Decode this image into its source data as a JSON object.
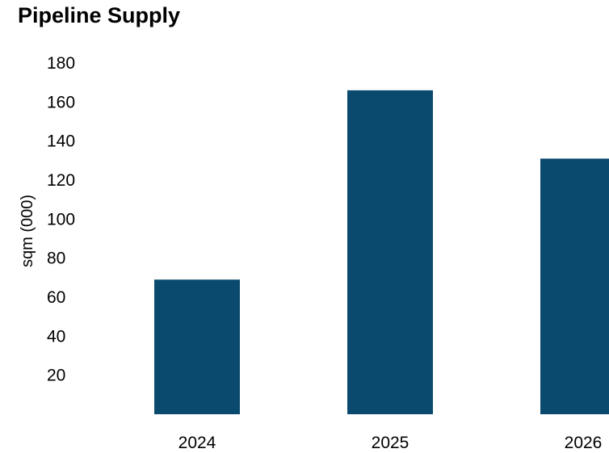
{
  "chart_data": {
    "type": "bar",
    "title": "Pipeline Supply",
    "xlabel": "",
    "ylabel": "sqm (000)",
    "categories": [
      "2024",
      "2025",
      "2026"
    ],
    "values": [
      69,
      166,
      131
    ],
    "ylim": [
      0,
      180
    ],
    "yticks": [
      20,
      40,
      60,
      80,
      100,
      120,
      140,
      160,
      180
    ],
    "bar_color": "#0b4a6f",
    "grid": false,
    "legend": "none"
  }
}
